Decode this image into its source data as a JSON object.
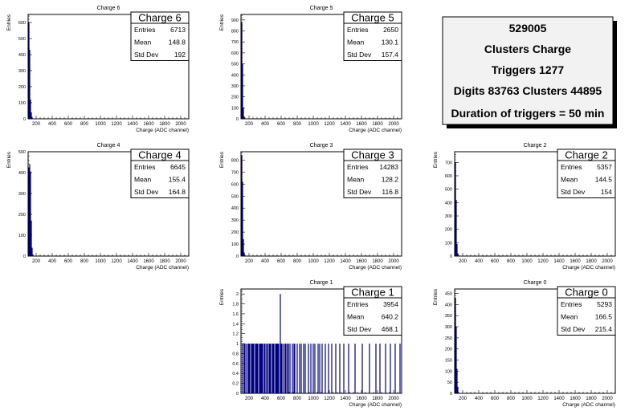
{
  "info_box": {
    "run": "529005",
    "title": "Clusters Charge",
    "triggers": "Triggers 1277",
    "digits": "Digits 83763 Clusters 44895",
    "duration": "Duration of triggers = 50 min"
  },
  "stats_labels": {
    "entries": "Entries",
    "mean": "Mean",
    "std": "Std Dev"
  },
  "chart_data": [
    {
      "type": "bar",
      "title": "Charge 6",
      "stats_title": "Charge 6",
      "xlabel": "Charge (ADC channel)",
      "ylabel": "Entries",
      "xlim": [
        100,
        2100
      ],
      "ylim": [
        0,
        650
      ],
      "xticks": [
        "200",
        "400",
        "600",
        "800",
        "1000",
        "1200",
        "1400",
        "1600",
        "1800",
        "2000"
      ],
      "yticks": [
        "0",
        "100",
        "200",
        "300",
        "400",
        "500",
        "600"
      ],
      "stats": {
        "entries": "6713",
        "mean": "148.8",
        "std": "192"
      },
      "bins": [
        [
          110,
          600
        ],
        [
          120,
          430
        ],
        [
          130,
          120
        ],
        [
          140,
          40
        ],
        [
          150,
          12
        ]
      ]
    },
    {
      "type": "bar",
      "title": "Charge 5",
      "stats_title": "Charge 5",
      "xlabel": "Charge (ADC channel)",
      "ylabel": "Entries",
      "xlim": [
        100,
        2100
      ],
      "ylim": [
        0,
        950
      ],
      "xticks": [
        "200",
        "400",
        "600",
        "800",
        "1000",
        "1200",
        "1400",
        "1600",
        "1800",
        "2000"
      ],
      "yticks": [
        "0",
        "100",
        "200",
        "300",
        "400",
        "500",
        "600",
        "700",
        "800",
        "900"
      ],
      "stats": {
        "entries": "2650",
        "mean": "130.1",
        "std": "157.4"
      },
      "bins": [
        [
          110,
          880
        ],
        [
          120,
          500
        ],
        [
          130,
          100
        ],
        [
          140,
          20
        ]
      ]
    },
    {
      "type": "bar",
      "title": "Charge 4",
      "stats_title": "Charge 4",
      "xlabel": "Charge (ADC channel)",
      "ylabel": "Entries",
      "xlim": [
        100,
        2100
      ],
      "ylim": [
        0,
        500
      ],
      "xticks": [
        "200",
        "400",
        "600",
        "800",
        "1000",
        "1200",
        "1400",
        "1600",
        "1800",
        "2000"
      ],
      "yticks": [
        "0",
        "100",
        "200",
        "300",
        "400",
        "500"
      ],
      "stats": {
        "entries": "6645",
        "mean": "155.4",
        "std": "164.8"
      },
      "bins": [
        [
          110,
          425
        ],
        [
          120,
          440
        ],
        [
          130,
          405
        ],
        [
          140,
          170
        ],
        [
          150,
          40
        ],
        [
          160,
          8
        ]
      ]
    },
    {
      "type": "bar",
      "title": "Charge 3",
      "stats_title": "Charge 3",
      "xlabel": "Charge (ADC channel)",
      "ylabel": "Entries",
      "xlim": [
        100,
        2100
      ],
      "ylim": [
        0,
        870
      ],
      "xticks": [
        "200",
        "400",
        "600",
        "800",
        "1000",
        "1200",
        "1400",
        "1600",
        "1800",
        "2000"
      ],
      "yticks": [
        "0",
        "100",
        "200",
        "300",
        "400",
        "500",
        "600",
        "700",
        "800"
      ],
      "stats": {
        "entries": "14283",
        "mean": "128.2",
        "std": "116.8"
      },
      "bins": [
        [
          110,
          840
        ],
        [
          120,
          620
        ],
        [
          130,
          140
        ],
        [
          140,
          30
        ]
      ]
    },
    {
      "type": "bar",
      "title": "Charge 2",
      "stats_title": "Charge 2",
      "xlabel": "Charge (ADC channel)",
      "ylabel": "Entries",
      "xlim": [
        100,
        2100
      ],
      "ylim": [
        0,
        780
      ],
      "xticks": [
        "200",
        "400",
        "600",
        "800",
        "1000",
        "1200",
        "1400",
        "1600",
        "1800",
        "2000"
      ],
      "yticks": [
        "0",
        "100",
        "200",
        "300",
        "400",
        "500",
        "600",
        "700"
      ],
      "stats": {
        "entries": "5357",
        "mean": "144.5",
        "std": "154"
      },
      "bins": [
        [
          110,
          700
        ],
        [
          120,
          420
        ],
        [
          130,
          90
        ],
        [
          140,
          20
        ]
      ]
    },
    {
      "type": "bar",
      "title": "Charge 1",
      "stats_title": "Charge 1",
      "xlabel": "Charge (ADC channel)",
      "ylabel": "Entries",
      "xlim": [
        100,
        2100
      ],
      "ylim": [
        0,
        2.1
      ],
      "xticks": [
        "200",
        "400",
        "600",
        "800",
        "1000",
        "1200",
        "1400",
        "1600",
        "1800",
        "2000"
      ],
      "yticks": [
        "0",
        "0.2",
        "0.4",
        "0.6",
        "0.8",
        "1",
        "1.2",
        "1.4",
        "1.6",
        "1.8",
        "2"
      ],
      "stats": {
        "entries": "3954",
        "mean": "640.2",
        "std": "468.1"
      },
      "bins": [
        [
          120,
          1
        ],
        [
          140,
          1
        ],
        [
          150,
          1
        ],
        [
          170,
          1
        ],
        [
          190,
          1
        ],
        [
          200,
          1
        ],
        [
          210,
          1
        ],
        [
          230,
          1
        ],
        [
          240,
          1
        ],
        [
          250,
          1
        ],
        [
          260,
          1
        ],
        [
          280,
          1
        ],
        [
          290,
          1
        ],
        [
          300,
          1
        ],
        [
          310,
          1
        ],
        [
          330,
          1
        ],
        [
          340,
          1
        ],
        [
          350,
          1
        ],
        [
          360,
          1
        ],
        [
          370,
          1
        ],
        [
          390,
          1
        ],
        [
          400,
          1
        ],
        [
          420,
          1
        ],
        [
          430,
          1
        ],
        [
          450,
          1
        ],
        [
          460,
          1
        ],
        [
          470,
          1
        ],
        [
          490,
          1
        ],
        [
          500,
          1
        ],
        [
          510,
          1
        ],
        [
          530,
          1
        ],
        [
          540,
          1
        ],
        [
          550,
          1
        ],
        [
          560,
          1
        ],
        [
          570,
          1
        ],
        [
          590,
          2
        ],
        [
          600,
          1
        ],
        [
          610,
          1
        ],
        [
          630,
          1
        ],
        [
          650,
          1
        ],
        [
          660,
          1
        ],
        [
          680,
          1
        ],
        [
          690,
          1
        ],
        [
          710,
          1
        ],
        [
          740,
          1
        ],
        [
          760,
          1
        ],
        [
          770,
          1
        ],
        [
          800,
          1
        ],
        [
          830,
          1
        ],
        [
          850,
          1
        ],
        [
          880,
          1
        ],
        [
          900,
          1
        ],
        [
          940,
          1
        ],
        [
          970,
          1
        ],
        [
          1000,
          1
        ],
        [
          1020,
          1
        ],
        [
          1060,
          1
        ],
        [
          1080,
          1
        ],
        [
          1110,
          1
        ],
        [
          1150,
          1
        ],
        [
          1190,
          1
        ],
        [
          1230,
          1
        ],
        [
          1280,
          1
        ],
        [
          1330,
          1
        ],
        [
          1380,
          1
        ],
        [
          1440,
          1
        ],
        [
          1520,
          1
        ],
        [
          1610,
          1
        ],
        [
          1700,
          1
        ],
        [
          1780,
          1
        ],
        [
          1830,
          1
        ],
        [
          1900,
          1
        ],
        [
          1960,
          1
        ],
        [
          2020,
          1
        ],
        [
          2080,
          1
        ]
      ]
    },
    {
      "type": "bar",
      "title": "Charge 0",
      "stats_title": "Charge 0",
      "xlabel": "Charge (ADC channel)",
      "ylabel": "Entries",
      "xlim": [
        100,
        2100
      ],
      "ylim": [
        0,
        470
      ],
      "xticks": [
        "200",
        "400",
        "600",
        "800",
        "1000",
        "1200",
        "1400",
        "1600",
        "1800",
        "2000"
      ],
      "yticks": [
        "0",
        "50",
        "100",
        "150",
        "200",
        "250",
        "300",
        "350",
        "400",
        "450"
      ],
      "stats": {
        "entries": "5293",
        "mean": "166.5",
        "std": "215.4"
      },
      "bins": [
        [
          110,
          430
        ],
        [
          120,
          300
        ],
        [
          130,
          110
        ],
        [
          140,
          30
        ]
      ]
    }
  ]
}
